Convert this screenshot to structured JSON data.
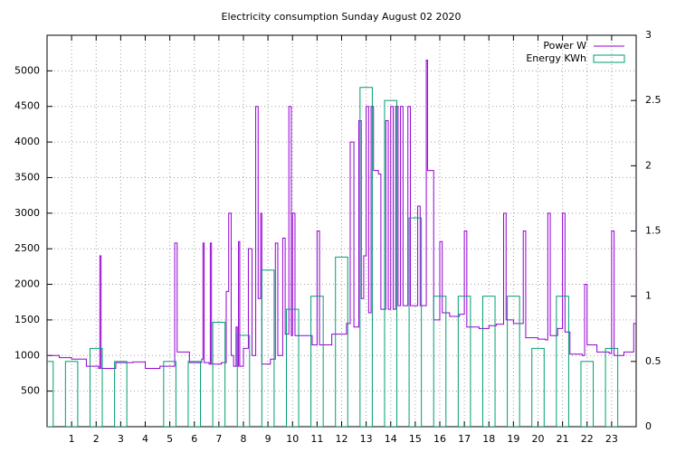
{
  "chart_data": {
    "type": "line",
    "title": "Electricity consumption Sunday August 02 2020",
    "xlim": [
      0,
      24
    ],
    "xticks": [
      1,
      2,
      3,
      4,
      5,
      6,
      7,
      8,
      9,
      10,
      11,
      12,
      13,
      14,
      15,
      16,
      17,
      18,
      19,
      20,
      21,
      22,
      23
    ],
    "ylim": [
      0,
      5500
    ],
    "yticks": [
      500,
      1000,
      1500,
      2000,
      2500,
      3000,
      3500,
      4000,
      4500,
      5000
    ],
    "y2lim": [
      0,
      3
    ],
    "y2ticks": [
      0,
      0.5,
      1,
      1.5,
      2,
      2.5,
      3
    ],
    "grid": true,
    "legend": "top right",
    "series": [
      {
        "name": "Power W",
        "color": "#9400d3",
        "x": [
          0,
          0.5,
          1.0,
          1.6,
          2.1,
          2.15,
          2.2,
          2.8,
          3.5,
          4.0,
          4.6,
          5.1,
          5.2,
          5.3,
          5.8,
          6.3,
          6.35,
          6.4,
          6.6,
          6.65,
          6.7,
          7.1,
          7.3,
          7.4,
          7.5,
          7.6,
          7.7,
          7.75,
          7.8,
          7.85,
          8.0,
          8.2,
          8.35,
          8.5,
          8.6,
          8.7,
          8.75,
          9.1,
          9.3,
          9.4,
          9.6,
          9.7,
          9.85,
          9.95,
          10.0,
          10.1,
          10.8,
          11.0,
          11.1,
          11.6,
          12.0,
          12.2,
          12.35,
          12.5,
          12.7,
          12.8,
          12.9,
          13.0,
          13.1,
          13.2,
          13.3,
          13.5,
          13.6,
          13.8,
          13.9,
          14.0,
          14.1,
          14.2,
          14.3,
          14.4,
          14.5,
          14.7,
          14.8,
          15.0,
          15.1,
          15.2,
          15.45,
          15.5,
          15.7,
          15.75,
          15.9,
          16.0,
          16.1,
          16.4,
          16.8,
          17.0,
          17.1,
          17.6,
          18.0,
          18.3,
          18.6,
          18.7,
          19.0,
          19.4,
          19.5,
          20.0,
          20.3,
          20.4,
          20.5,
          20.8,
          21.0,
          21.1,
          21.3,
          21.8,
          21.9,
          22.0,
          22.4,
          22.9,
          23.0,
          23.1,
          23.5,
          23.9,
          24.0
        ],
        "values": [
          1000,
          970,
          950,
          850,
          820,
          2400,
          820,
          900,
          910,
          820,
          850,
          850,
          2580,
          1050,
          900,
          950,
          2580,
          900,
          880,
          2580,
          880,
          900,
          1900,
          3000,
          1000,
          850,
          1400,
          850,
          2600,
          850,
          1100,
          2500,
          1000,
          4500,
          1800,
          3000,
          880,
          950,
          2580,
          1000,
          2650,
          1300,
          4500,
          1280,
          3000,
          1280,
          1150,
          2750,
          1150,
          1300,
          1300,
          1450,
          4000,
          1400,
          4300,
          1800,
          2400,
          4500,
          1600,
          4500,
          3600,
          3550,
          1650,
          4300,
          1650,
          4500,
          1650,
          4500,
          1700,
          4500,
          1700,
          4500,
          1700,
          1700,
          3100,
          1700,
          5150,
          3600,
          3600,
          1500,
          1500,
          2600,
          1600,
          1550,
          1580,
          2750,
          1400,
          1380,
          1420,
          1440,
          3000,
          1500,
          1450,
          2750,
          1250,
          1230,
          1220,
          3000,
          1280,
          1380,
          3000,
          1330,
          1020,
          1000,
          2000,
          1150,
          1050,
          1030,
          2750,
          1000,
          1050,
          1450,
          2750
        ]
      },
      {
        "name": "Energy KWh",
        "color": "#009e73",
        "axis": "y2",
        "x": [
          0,
          1,
          2,
          3,
          4,
          5,
          6,
          7,
          8,
          9,
          10,
          11,
          12,
          13,
          14,
          15,
          16,
          17,
          18,
          19,
          20,
          21,
          22,
          23
        ],
        "values": [
          0.5,
          0.5,
          0.6,
          0.5,
          0,
          0.5,
          0.5,
          0.8,
          0.7,
          1.2,
          0.9,
          1.0,
          1.3,
          2.6,
          2.5,
          1.6,
          1.0,
          1.0,
          1.0,
          1.0,
          0.6,
          1.0,
          0.5,
          0.6
        ]
      }
    ]
  }
}
